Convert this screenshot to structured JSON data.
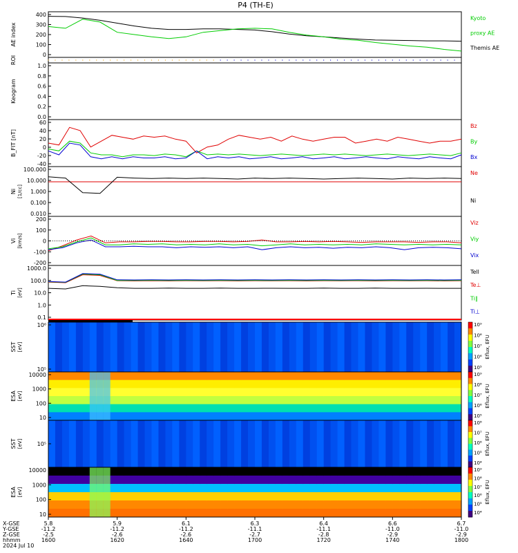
{
  "title": "P4 (TH-E)",
  "colors": {
    "black": "#000000",
    "red": "#e00000",
    "green": "#00cc00",
    "blue": "#0000d0",
    "orange": "#f0a000"
  },
  "chart_data": [
    {
      "id": "ae",
      "type": "line",
      "ylabel": "AE index",
      "ylim": [
        0,
        400
      ],
      "yticks": [
        "400",
        "300",
        "200",
        "100",
        "0"
      ],
      "series": [
        {
          "name": "Themis AE",
          "color": "black",
          "values": [
            360,
            358,
            345,
            325,
            300,
            275,
            255,
            245,
            245,
            250,
            250,
            245,
            240,
            225,
            205,
            190,
            180,
            170,
            160,
            152,
            150,
            148,
            145,
            145,
            142
          ]
        },
        {
          "name": "Kyoto proxy AE",
          "color": "green",
          "values": [
            270,
            255,
            335,
            310,
            220,
            200,
            180,
            165,
            180,
            220,
            235,
            250,
            255,
            250,
            220,
            195,
            180,
            160,
            150,
            130,
            115,
            100,
            90,
            70,
            55
          ]
        }
      ],
      "legend": [
        {
          "text": "Kyoto",
          "color": "green"
        },
        {
          "text": "proxy AE",
          "color": "green"
        },
        {
          "text": "Themis AE",
          "color": "black"
        }
      ]
    },
    {
      "id": "roi",
      "type": "line",
      "ylabel": "ROI",
      "yticks": []
    },
    {
      "id": "keogram",
      "type": "line",
      "ylabel": "Keogram",
      "ylim": [
        0,
        1
      ],
      "yticks": [
        "1.0",
        "0.8",
        "0.6",
        "0.4",
        "0.2",
        "0.0"
      ]
    },
    {
      "id": "bfield",
      "type": "line",
      "ylabel": "B_FIT [nT]",
      "ylim": [
        -40,
        80
      ],
      "yticks": [
        "60",
        "40",
        "20",
        "0",
        "-20",
        "-40"
      ],
      "series": [
        {
          "name": "Bz",
          "color": "red",
          "values": [
            20,
            15,
            60,
            52,
            10,
            25,
            40,
            35,
            30,
            38,
            35,
            38,
            30,
            25,
            -5,
            10,
            15,
            30,
            40,
            35,
            30,
            35,
            25,
            38,
            30,
            25,
            30,
            35,
            35,
            20,
            25,
            30,
            25,
            35,
            30,
            25,
            20,
            25,
            25,
            30
          ]
        },
        {
          "name": "By",
          "color": "green",
          "values": [
            5,
            0,
            25,
            20,
            -5,
            -10,
            -10,
            -15,
            -10,
            -10,
            -12,
            -8,
            -10,
            -15,
            0,
            -10,
            -8,
            -10,
            -8,
            -10,
            -12,
            -10,
            -8,
            -10,
            -12,
            -10,
            -8,
            -10,
            -8,
            -10,
            -12,
            -10,
            -8,
            -10,
            -12,
            -10,
            -8,
            -10,
            -12,
            -5
          ]
        },
        {
          "name": "Bx",
          "color": "blue",
          "values": [
            0,
            -10,
            20,
            15,
            -15,
            -20,
            -15,
            -20,
            -15,
            -18,
            -18,
            -15,
            -20,
            -18,
            0,
            -20,
            -15,
            -18,
            -15,
            -20,
            -18,
            -15,
            -20,
            -18,
            -15,
            -20,
            -18,
            -15,
            -20,
            -18,
            -15,
            -18,
            -20,
            -15,
            -18,
            -20,
            -15,
            -18,
            -20,
            -10
          ]
        }
      ],
      "legend": [
        {
          "text": "Bz",
          "color": "red"
        },
        {
          "text": "By",
          "color": "green"
        },
        {
          "text": "Bx",
          "color": "blue"
        }
      ]
    },
    {
      "id": "density",
      "type": "line",
      "log": true,
      "ylabel": "Ni",
      "ylabel2": "[1/cc]",
      "ylim": [
        0.01,
        100
      ],
      "yticks": [
        "100.000",
        "10.000",
        "1.000",
        "0.100",
        "0.010"
      ],
      "series": [
        {
          "name": "Ne",
          "color": "red",
          "values": [
            6,
            6,
            6,
            6,
            6,
            6,
            6,
            6,
            6,
            6,
            6,
            6,
            6,
            6,
            6,
            6,
            6,
            6,
            6,
            6,
            6,
            6,
            6,
            6,
            6
          ]
        },
        {
          "name": "Ni",
          "color": "black",
          "values": [
            15,
            12,
            0.8,
            0.7,
            14,
            12,
            11,
            12,
            11,
            12,
            11,
            10,
            12,
            11,
            12,
            11,
            10,
            11,
            12,
            11,
            10,
            12,
            11,
            12,
            11
          ]
        }
      ],
      "legend": [
        {
          "text": "Ne",
          "color": "red"
        },
        {
          "text": "Ni",
          "color": "black"
        }
      ]
    },
    {
      "id": "velocity",
      "type": "line",
      "ylabel": "Vi",
      "ylabel2": "[km/s]",
      "ylim": [
        -250,
        250
      ],
      "yticks": [
        "200",
        "100",
        "0",
        "-100",
        "-200"
      ],
      "series": [
        {
          "name": "Viz",
          "color": "red",
          "values": [
            -100,
            -50,
            10,
            50,
            -20,
            -10,
            -10,
            -5,
            -5,
            -10,
            -10,
            -5,
            -5,
            -10,
            -5,
            10,
            -10,
            -10,
            -5,
            -10,
            -5,
            -10,
            -15,
            -10,
            -10,
            -10,
            -15,
            -10,
            -10,
            -20
          ]
        },
        {
          "name": "Viy",
          "color": "green",
          "values": [
            -80,
            -60,
            -10,
            30,
            -40,
            -40,
            -30,
            -35,
            -30,
            -40,
            -35,
            -40,
            -30,
            -40,
            -35,
            -50,
            -40,
            -30,
            -40,
            -35,
            -40,
            -35,
            -40,
            -30,
            -35,
            -40,
            -35,
            -40,
            -35,
            -40
          ]
        },
        {
          "name": "Vix",
          "color": "blue",
          "values": [
            -90,
            -70,
            -20,
            10,
            -60,
            -60,
            -55,
            -60,
            -60,
            -70,
            -60,
            -65,
            -60,
            -70,
            -60,
            -90,
            -70,
            -60,
            -70,
            -65,
            -75,
            -65,
            -70,
            -60,
            -70,
            -90,
            -70,
            -65,
            -70,
            -80
          ]
        }
      ],
      "legend": [
        {
          "text": "Viz",
          "color": "red"
        },
        {
          "text": "Viy",
          "color": "green"
        },
        {
          "text": "Vix",
          "color": "blue"
        }
      ]
    },
    {
      "id": "temperature",
      "type": "line",
      "log": true,
      "ylabel": "Ti",
      "ylabel2": "[eV]",
      "ylim": [
        0.05,
        5000
      ],
      "yticks": [
        "1000.0",
        "100.0",
        "10.0",
        "1.0",
        "0.1"
      ],
      "series": [
        {
          "name": "Te",
          "color": "black",
          "values": [
            40,
            35,
            70,
            60,
            45,
            40,
            40,
            42,
            40,
            40,
            42,
            40,
            40,
            41,
            40,
            40,
            42,
            40,
            40,
            42,
            40,
            40,
            41,
            40,
            40
          ]
        },
        {
          "name": "Te⊥",
          "color": "red",
          "values": [
            150,
            130,
            700,
            600,
            200,
            190,
            200,
            190,
            200,
            195,
            200,
            190,
            200,
            195,
            200,
            190,
            200,
            195,
            200,
            190,
            200,
            195,
            200,
            190,
            200
          ]
        },
        {
          "name": "Ti∥",
          "color": "green",
          "values": [
            160,
            140,
            800,
            700,
            210,
            210,
            215,
            210,
            215,
            210,
            215,
            210,
            215,
            210,
            215,
            210,
            215,
            210,
            215,
            210,
            215,
            210,
            215,
            210,
            215
          ]
        },
        {
          "name": "Ti⊥",
          "color": "blue",
          "values": [
            170,
            150,
            900,
            800,
            240,
            235,
            240,
            235,
            240,
            235,
            240,
            235,
            240,
            235,
            240,
            235,
            240,
            235,
            240,
            235,
            240,
            235,
            240,
            235,
            240
          ]
        }
      ],
      "legend": [
        {
          "text": "Tell",
          "color": "black"
        },
        {
          "text": "Te⊥",
          "color": "red"
        },
        {
          "text": "Ti∥",
          "color": "green"
        },
        {
          "text": "Ti⊥",
          "color": "blue"
        }
      ]
    },
    {
      "id": "sst_e",
      "type": "heatmap",
      "ylabel": "SST",
      "ylabel2": "[eV]",
      "yticks": [
        "10⁶",
        "10⁵"
      ]
    },
    {
      "id": "esa_e",
      "type": "heatmap",
      "ylabel": "ESA",
      "ylabel2": "[eV]",
      "yticks": [
        "10000",
        "1000",
        "100",
        "10"
      ]
    },
    {
      "id": "sst_i",
      "type": "heatmap",
      "ylabel": "SST",
      "ylabel2": "[eV]",
      "yticks": [
        "10⁵"
      ]
    },
    {
      "id": "esa_i",
      "type": "heatmap",
      "ylabel": "ESA",
      "ylabel2": "[eV]",
      "yticks": [
        "10000",
        "1000",
        "100",
        "10"
      ]
    }
  ],
  "colorbars": [
    {
      "label": "Eflux, EFU",
      "ticks": [
        "10⁹",
        "10⁸",
        "10⁷",
        "10⁶",
        "10⁵"
      ]
    },
    {
      "label": "Eflux, EFU",
      "ticks": [
        "10⁹",
        "10⁸",
        "10⁷",
        "10⁶",
        "10⁵"
      ]
    },
    {
      "label": "Eflux, EFU",
      "ticks": [
        "10⁸",
        "10⁷",
        "10⁶",
        "10⁵",
        "10⁴"
      ]
    },
    {
      "label": "Eflux, EFU",
      "ticks": [
        "10⁹",
        "10⁸",
        "10⁷",
        "10⁶",
        "10⁵",
        "10⁴"
      ]
    }
  ],
  "x_axis": {
    "row_labels": [
      "X-GSE",
      "Y-GSE",
      "Z-GSE",
      "hhmm",
      "2024 Jul 10"
    ],
    "ticks": [
      {
        "x": "5.8",
        "y": "-11.2",
        "z": "-2.5",
        "t": "1600"
      },
      {
        "x": "5.9",
        "y": "-11.2",
        "z": "-2.6",
        "t": "1620"
      },
      {
        "x": "6.1",
        "y": "-11.2",
        "z": "-2.6",
        "t": "1640"
      },
      {
        "x": "6.3",
        "y": "-11.1",
        "z": "-2.7",
        "t": "1700"
      },
      {
        "x": "6.4",
        "y": "-11.1",
        "z": "-2.8",
        "t": "1720"
      },
      {
        "x": "6.6",
        "y": "-11.0",
        "z": "-2.9",
        "t": "1740"
      },
      {
        "x": "6.7",
        "y": "-11.0",
        "z": "-2.9",
        "t": "1800"
      }
    ]
  }
}
